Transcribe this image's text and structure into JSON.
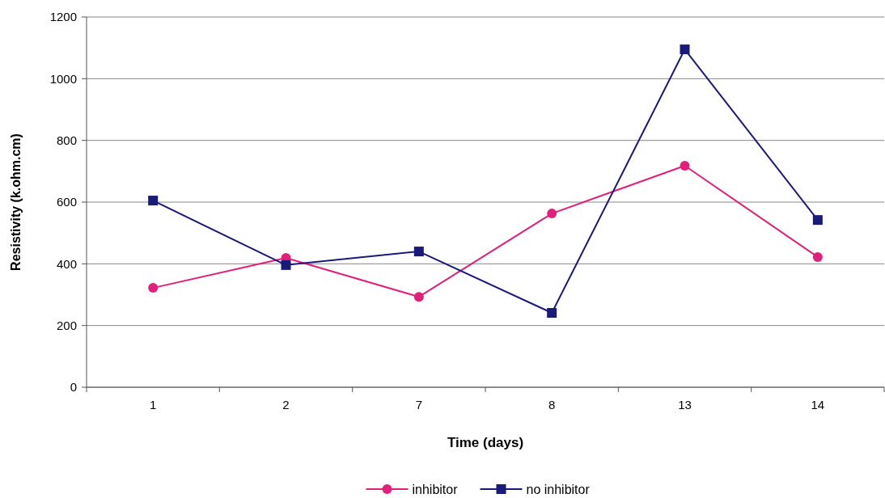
{
  "chart_data": {
    "type": "line",
    "xlabel": "Time (days)",
    "ylabel": "Resistivity (k.ohm.cm)",
    "categories": [
      "1",
      "2",
      "7",
      "8",
      "13",
      "14"
    ],
    "series": [
      {
        "name": "inhibitor",
        "color": "#e0207a",
        "marker": "circle",
        "values": [
          322,
          419,
          293,
          563,
          718,
          422
        ]
      },
      {
        "name": "no inhibitor",
        "color": "#1a1a7a",
        "marker": "square",
        "values": [
          605,
          396,
          440,
          241,
          1095,
          542
        ]
      }
    ],
    "ylim": [
      0,
      1200
    ],
    "yticks": [
      0,
      200,
      400,
      600,
      800,
      1000,
      1200
    ],
    "grid": "y",
    "legend": "bottom"
  }
}
